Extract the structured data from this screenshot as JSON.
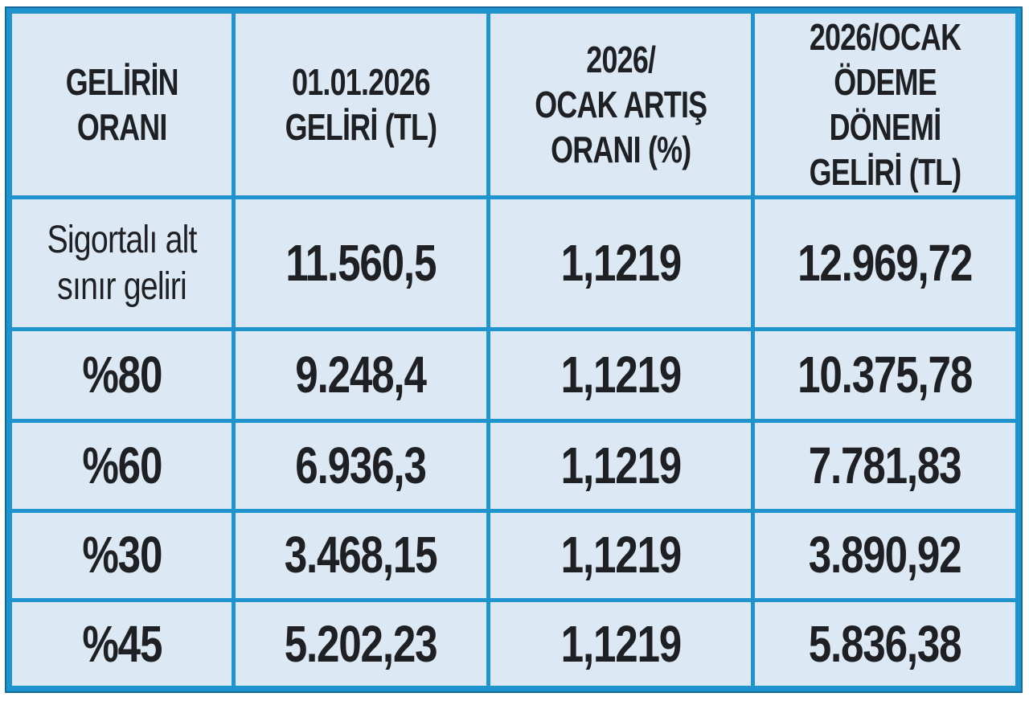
{
  "chart_data": {
    "type": "table",
    "title": "",
    "columns": [
      "GELİRİN ORANI",
      "01.01.2026 GELİRİ (TL)",
      "2026/OCAK ARTIŞ ORANI (%)",
      "2026/OCAK ÖDEME DÖNEMİ GELİRİ (TL)"
    ],
    "rows": [
      {
        "label": "Sigortalı alt sınır geliri",
        "values": [
          "11.560,5",
          "1,1219",
          "12.969,72"
        ]
      },
      {
        "label": "%80",
        "values": [
          "9.248,4",
          "1,1219",
          "10.375,78"
        ]
      },
      {
        "label": "%60",
        "values": [
          "6.936,3",
          "1,1219",
          "7.781,83"
        ]
      },
      {
        "label": "%30",
        "values": [
          "3.468,15",
          "1,1219",
          "3.890,92"
        ]
      },
      {
        "label": "%45",
        "values": [
          "5.202,23",
          "1,1219",
          "5.836,38"
        ]
      }
    ]
  },
  "display": {
    "headers": [
      "GELİRİN\nORANI",
      "01.01.2026\nGELİRİ (TL)",
      "2026/\nOCAK ARTIŞ\nORANI (%)",
      "2026/OCAK\nÖDEME DÖNEMİ\nGELİRİ (TL)"
    ],
    "rows": [
      {
        "label": "Sigortalı alt\nsınır geliri",
        "v1": "11.560,5",
        "v2": "1,1219",
        "v3": "12.969,72"
      },
      {
        "label": "%80",
        "v1": "9.248,4",
        "v2": "1,1219",
        "v3": "10.375,78"
      },
      {
        "label": "%60",
        "v1": "6.936,3",
        "v2": "1,1219",
        "v3": "7.781,83"
      },
      {
        "label": "%30",
        "v1": "3.468,15",
        "v2": "1,1219",
        "v3": "3.890,92"
      },
      {
        "label": "%45",
        "v1": "5.202,23",
        "v2": "1,1219",
        "v3": "5.836,38"
      }
    ]
  },
  "colors": {
    "cell_background": "#dce9f5",
    "border_inner": "#1e93ce",
    "border_outer_rim": "#176a9c",
    "text": "#1f2023"
  }
}
